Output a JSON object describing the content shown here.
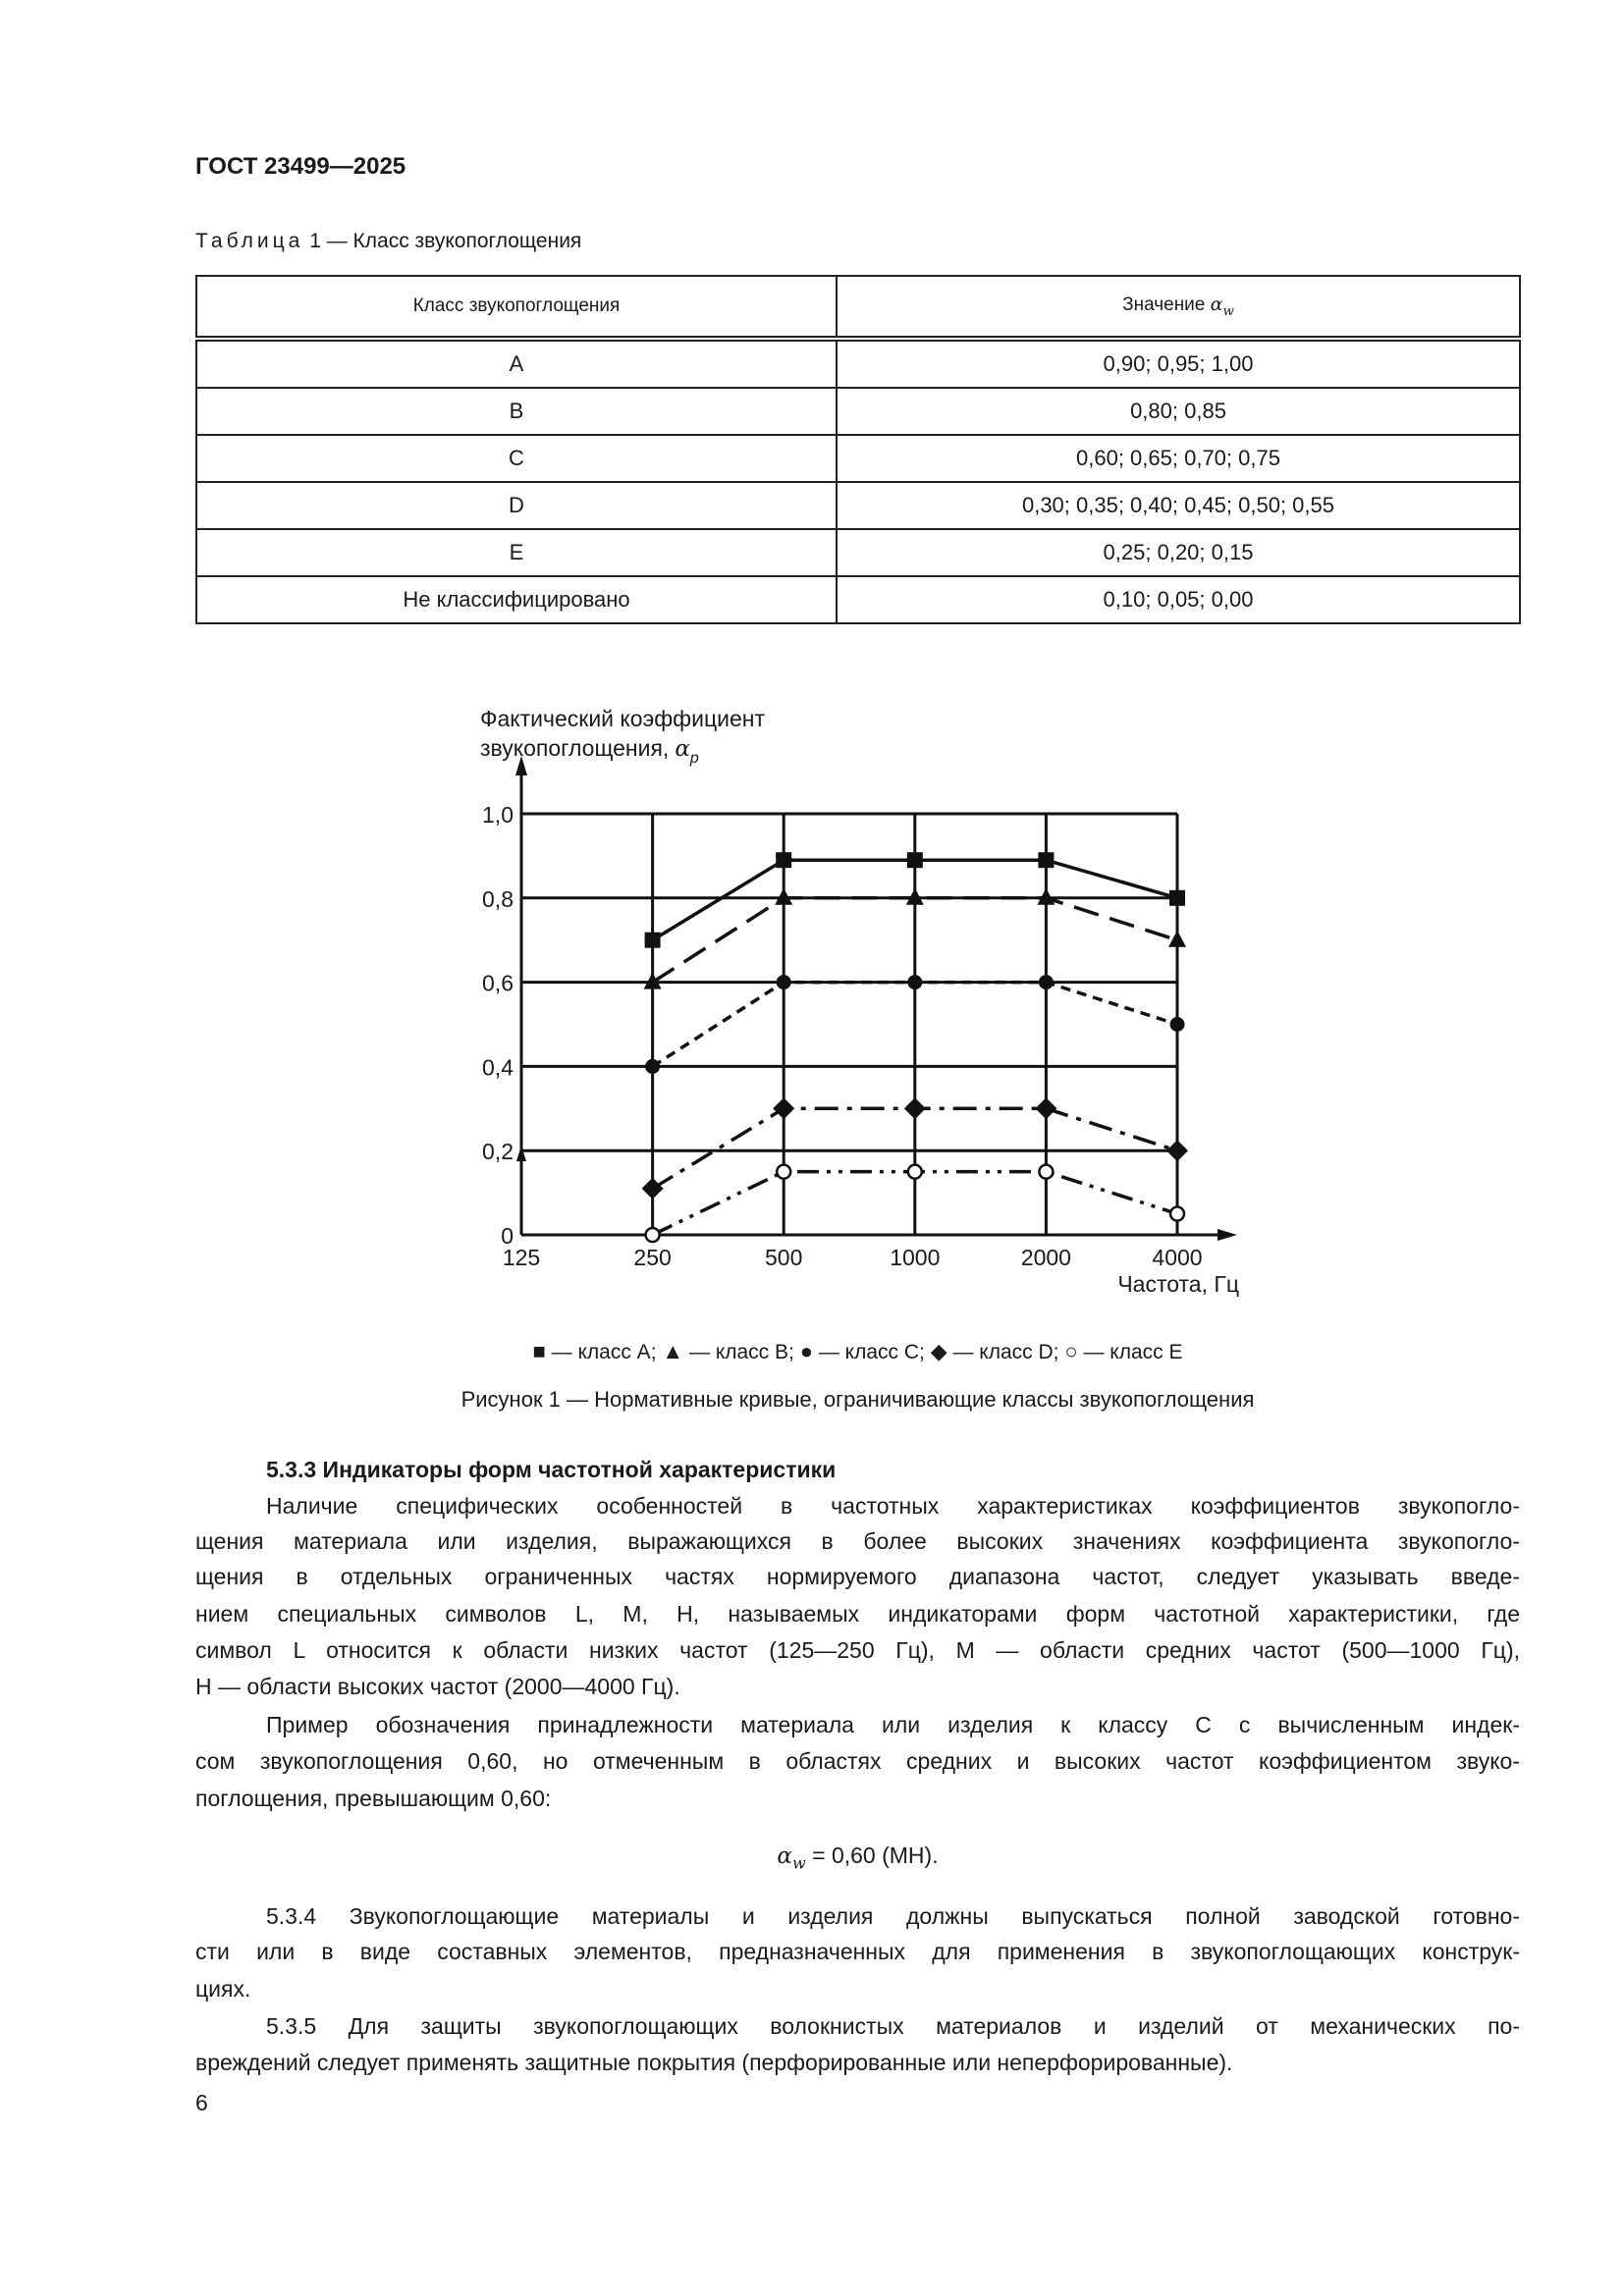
{
  "header": {
    "doc_id": "ГОСТ 23499—2025"
  },
  "table": {
    "caption_label": "Таблица",
    "caption_rest": "1 — Класс звукопоглощения",
    "col1": "Класс звукопоглощения",
    "col2": "Значение",
    "col2_symbol": "α",
    "col2_sub": "w",
    "rows": [
      {
        "cls": "A",
        "val": "0,90; 0,95; 1,00"
      },
      {
        "cls": "B",
        "val": "0,80; 0,85"
      },
      {
        "cls": "C",
        "val": "0,60; 0,65; 0,70; 0,75"
      },
      {
        "cls": "D",
        "val": "0,30; 0,35; 0,40; 0,45; 0,50; 0,55"
      },
      {
        "cls": "E",
        "val": "0,25; 0,20; 0,15"
      },
      {
        "cls": "Не классифицировано",
        "val": "0,10; 0,05; 0,00"
      }
    ]
  },
  "chart_data": {
    "type": "line",
    "ylabel_line1": "Фактический коэффициент",
    "ylabel_line2": "звукопоглощения,",
    "ylabel_symbol": "α",
    "ylabel_sub": "p",
    "xlabel": "Частота, Гц",
    "x_scale": "log",
    "x_ticks": [
      "125",
      "250",
      "500",
      "1000",
      "2000",
      "4000"
    ],
    "x_values": [
      125,
      250,
      500,
      1000,
      2000,
      4000
    ],
    "y_ticks": [
      "0",
      "0,2",
      "0,4",
      "0,6",
      "0,8",
      "1,0"
    ],
    "ylim": [
      0,
      1.0
    ],
    "grid": true,
    "legend_position": "bottom",
    "series": [
      {
        "name": "класс A",
        "marker": "square",
        "dash": "solid",
        "x": [
          250,
          500,
          1000,
          2000,
          4000
        ],
        "y": [
          0.7,
          0.89,
          0.89,
          0.89,
          0.8
        ]
      },
      {
        "name": "класс B",
        "marker": "triangle",
        "dash": "long-dash",
        "x": [
          250,
          500,
          1000,
          2000,
          4000
        ],
        "y": [
          0.6,
          0.8,
          0.8,
          0.8,
          0.7
        ]
      },
      {
        "name": "класс C",
        "marker": "circle",
        "dash": "short-dash",
        "x": [
          250,
          500,
          1000,
          2000,
          4000
        ],
        "y": [
          0.4,
          0.6,
          0.6,
          0.6,
          0.5
        ]
      },
      {
        "name": "класс D",
        "marker": "diamond",
        "dash": "dash-dot",
        "x": [
          250,
          500,
          1000,
          2000,
          4000
        ],
        "y": [
          0.11,
          0.3,
          0.3,
          0.3,
          0.2
        ]
      },
      {
        "name": "класс E",
        "marker": "open-circle",
        "dash": "dash-dot-dot",
        "x": [
          250,
          500,
          1000,
          2000,
          4000
        ],
        "y": [
          0.0,
          0.15,
          0.15,
          0.15,
          0.05
        ]
      }
    ],
    "legend_separator": " — ",
    "caption": "Рисунок 1 — Нормативные кривые, ограничивающие классы звукопоглощения"
  },
  "section_533": {
    "heading": "5.3.3 Индикаторы форм частотной характеристики",
    "para1": [
      "Наличие специфических особенностей в частотных характеристиках коэффициентов звукопогло-",
      "щения материала или изделия, выражающихся в более высоких значениях коэффициента звукопогло-",
      "щения в отдельных ограниченных частях нормируемого диапазона частот, следует указывать введе-",
      "нием специальных символов L, M, H, называемых индикаторами форм частотной характеристики, где",
      "символ L относится к области низких частот (125—250 Гц), M — области средних частот (500—1000 Гц),",
      "H — области высоких частот (2000—4000 Гц)."
    ],
    "para2": [
      "Пример обозначения принадлежности материала или изделия к классу C с вычисленным индек-",
      "сом звукопоглощения 0,60, но отмеченным в областях средних и высоких частот коэффициентом звуко-",
      "поглощения, превышающим 0,60:"
    ],
    "formula_symbol": "α",
    "formula_sub": "w",
    "formula_rest": " = 0,60 (MH)."
  },
  "section_534": [
    "5.3.4  Звукопоглощающие материалы и изделия должны выпускаться полной заводской готовно-",
    "сти или в виде составных элементов, предназначенных для применения в звукопоглощающих конструк-",
    "циях."
  ],
  "section_535": [
    "5.3.5 Для защиты звукопоглощающих волокнистых материалов и изделий от механических по-",
    "вреждений следует применять защитные покрытия (перфорированные или неперфорированные)."
  ],
  "footer": {
    "page_number": "6"
  }
}
